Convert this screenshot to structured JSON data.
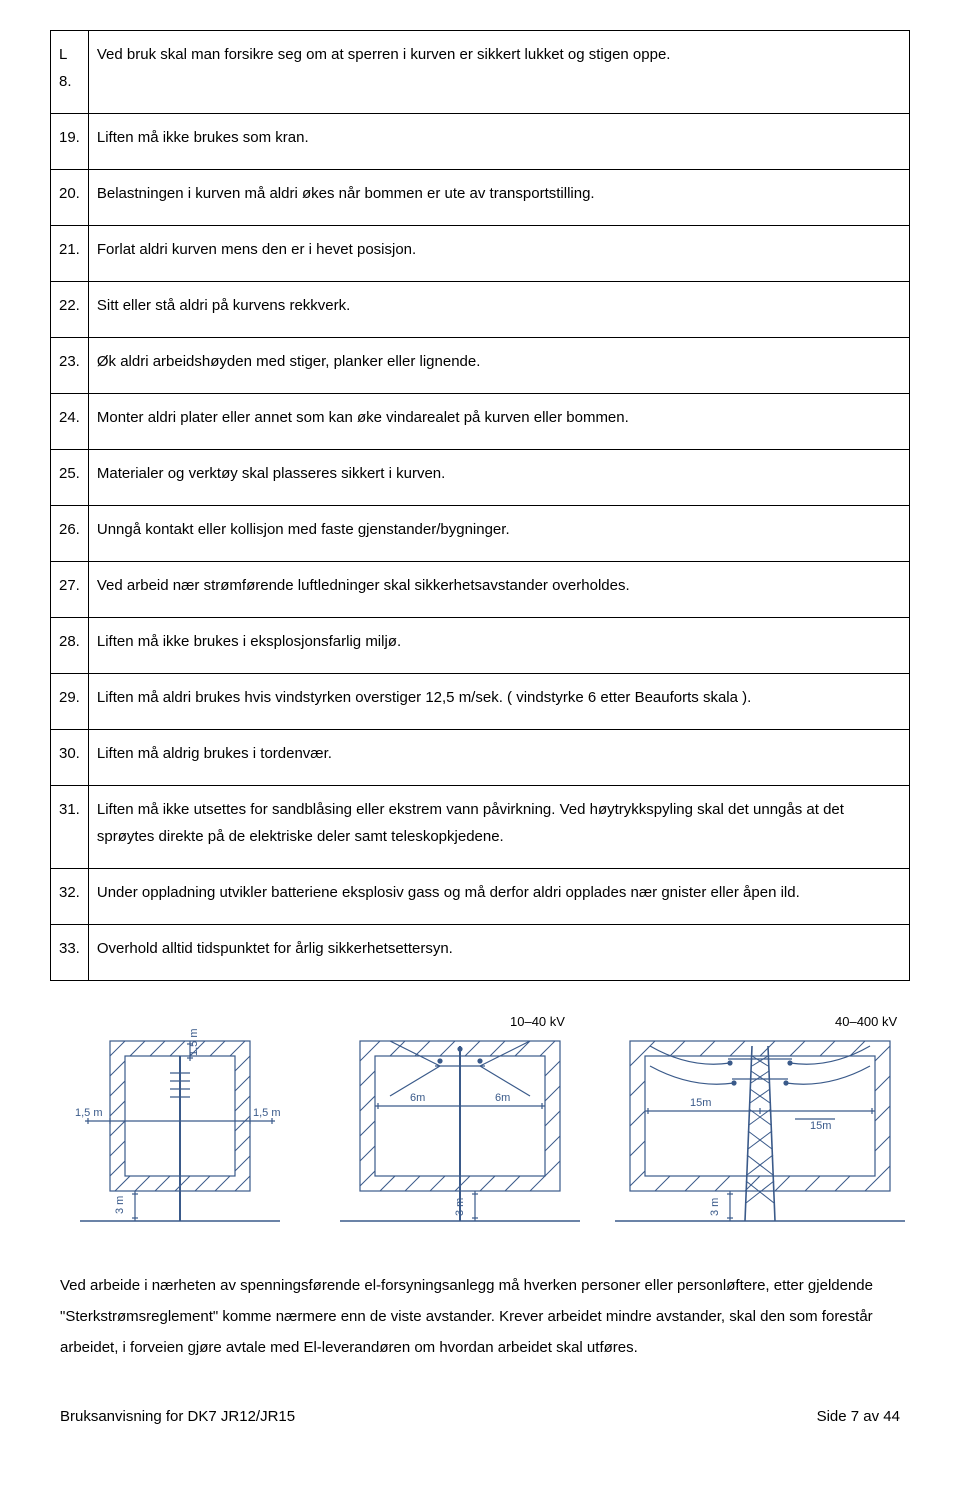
{
  "table": {
    "rows": [
      {
        "num": "L 8.",
        "text": "Ved bruk skal man forsikre seg om at sperren i kurven er sikkert lukket og stigen oppe."
      },
      {
        "num": "19.",
        "text": "Liften må ikke brukes som kran."
      },
      {
        "num": "20.",
        "text": "Belastningen i kurven må aldri økes når bommen er ute av transportstilling."
      },
      {
        "num": "21.",
        "text": "Forlat aldri kurven mens den er i hevet posisjon."
      },
      {
        "num": "22.",
        "text": "Sitt eller stå aldri på kurvens rekkverk."
      },
      {
        "num": "23.",
        "text": "Øk aldri arbeidshøyden med stiger, planker eller lignende."
      },
      {
        "num": "24.",
        "text": "Monter aldri plater eller annet som kan øke vindarealet på kurven eller bommen."
      },
      {
        "num": "25.",
        "text": "Materialer og verktøy skal plasseres sikkert i kurven."
      },
      {
        "num": "26.",
        "text": "Unngå kontakt eller kollisjon med faste gjenstander/bygninger."
      },
      {
        "num": "27.",
        "text": "Ved arbeid nær strømførende luftledninger skal sikkerhetsavstander overholdes."
      },
      {
        "num": "28.",
        "text": "Liften må ikke brukes i eksplosjonsfarlig miljø."
      },
      {
        "num": "29.",
        "text": "Liften må aldri brukes hvis vindstyrken overstiger 12,5 m/sek. ( vindstyrke 6 etter Beauforts skala )."
      },
      {
        "num": "30.",
        "text": "Liften må aldrig brukes i tordenvær."
      },
      {
        "num": "31.",
        "text": "Liften må ikke utsettes for sandblåsing eller ekstrem vann påvirkning. Ved høytrykkspyling skal det unngås at det sprøytes direkte på de elektriske deler samt teleskopkjedene."
      },
      {
        "num": "32.",
        "text": "Under oppladning utvikler batteriene eksplosiv gass og må derfor aldri opplades nær gnister eller åpen ild."
      },
      {
        "num": "33.",
        "text": "Overhold alltid tidspunktet for årlig sikkerhetsettersyn."
      }
    ]
  },
  "diagrams": {
    "stroke": "#3a5a8a",
    "font": "Arial",
    "label_fontsize": 11,
    "d1": {
      "left": "1,5 m",
      "right": "1,5 m",
      "top": "1,5 m",
      "bottom": "3 m"
    },
    "d2": {
      "title": "10–40 kV",
      "left": "6m",
      "right": "6m",
      "bottom": "3 m"
    },
    "d3": {
      "title": "40–400 kV",
      "left": "15m",
      "right": "15m",
      "bottom": "3 m"
    }
  },
  "paragraph": "Ved arbeide i nærheten av spenningsførende el-forsyningsanlegg må hverken personer eller personløftere, etter gjeldende \"Sterkstrømsreglement\" komme nærmere enn de viste avstander. Krever arbeidet mindre avstander, skal den som forestår arbeidet, i forveien gjøre avtale med El-leverandøren om hvordan arbeidet skal utføres.",
  "footer": {
    "left": "Bruksanvisning for DK7 JR12/JR15",
    "right": "Side 7 av 44"
  }
}
